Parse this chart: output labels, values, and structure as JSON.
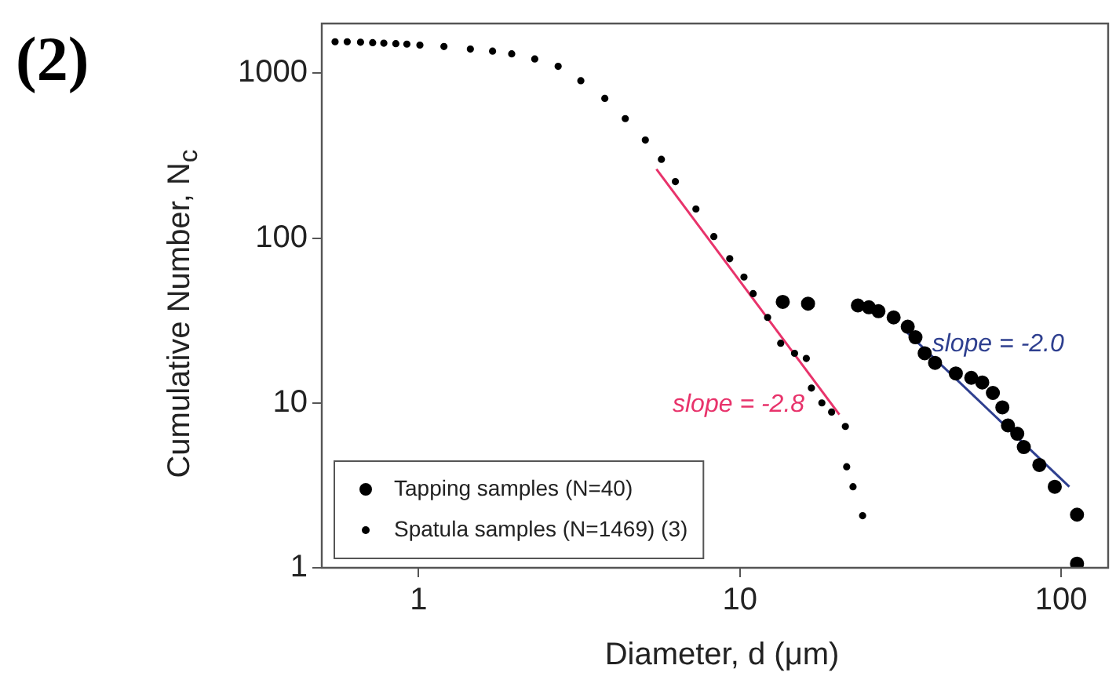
{
  "chart_data": {
    "type": "scatter",
    "xlabel": "Diameter, d (μm)",
    "ylabel": "Cumulative Number, N$_{c}$",
    "log": "xy",
    "xlim": [
      0.5,
      140
    ],
    "ylim": [
      1,
      2000
    ],
    "xticks": [
      1,
      10,
      100
    ],
    "yticks": [
      1,
      10,
      100,
      1000
    ],
    "grid": false,
    "legend": "bottom left",
    "annotations": [
      "(2)",
      "slope = -2.8",
      "slope = -2.0"
    ],
    "series": [
      {
        "name": "Tapping samples (N=40)",
        "marker": "circle",
        "color": "#000000",
        "x": [
          13.6,
          16.3,
          23.3,
          25.2,
          27.0,
          30.1,
          33.3,
          35.2,
          37.6,
          40.5,
          47,
          52.5,
          56.8,
          61.3,
          65.6,
          68.3,
          73,
          76.5,
          85.5,
          95.5,
          112,
          112
        ],
        "values": [
          41,
          40,
          39,
          38,
          36,
          33,
          29,
          25,
          20,
          17.5,
          15.1,
          14.2,
          13.3,
          11.5,
          9.4,
          7.3,
          6.5,
          5.4,
          4.2,
          3.1,
          2.1,
          1.06
        ]
      },
      {
        "name": "Spatula samples (N=1469) (3)",
        "marker": "circle",
        "color": "#000000",
        "x": [
          0.55,
          0.6,
          0.66,
          0.72,
          0.78,
          0.85,
          0.92,
          1.01,
          1.2,
          1.45,
          1.7,
          1.95,
          2.3,
          2.72,
          3.2,
          3.8,
          4.4,
          5.08,
          5.7,
          6.3,
          7.3,
          8.3,
          9.3,
          10.3,
          11.0,
          12.2,
          13.4,
          14.8,
          16.1,
          16.7,
          18,
          19.3,
          21.3,
          21.5,
          22.5,
          24.1
        ],
        "values": [
          1550,
          1550,
          1540,
          1530,
          1520,
          1510,
          1500,
          1480,
          1450,
          1400,
          1360,
          1310,
          1220,
          1100,
          900,
          703,
          530,
          393,
          300,
          220,
          150,
          102,
          75,
          58,
          46,
          33,
          23,
          20,
          18.6,
          12.3,
          10,
          8.8,
          7.2,
          4.1,
          3.1,
          2.07
        ]
      },
      {
        "type": "line",
        "marker": "none",
        "color": "#e8336b",
        "x": [
          5.5,
          20.4
        ],
        "values": [
          262,
          8.5
        ]
      },
      {
        "type": "line",
        "marker": "none",
        "color": "#2e3f8f",
        "x": [
          33,
          106
        ],
        "values": [
          27,
          3.1
        ]
      }
    ]
  }
}
